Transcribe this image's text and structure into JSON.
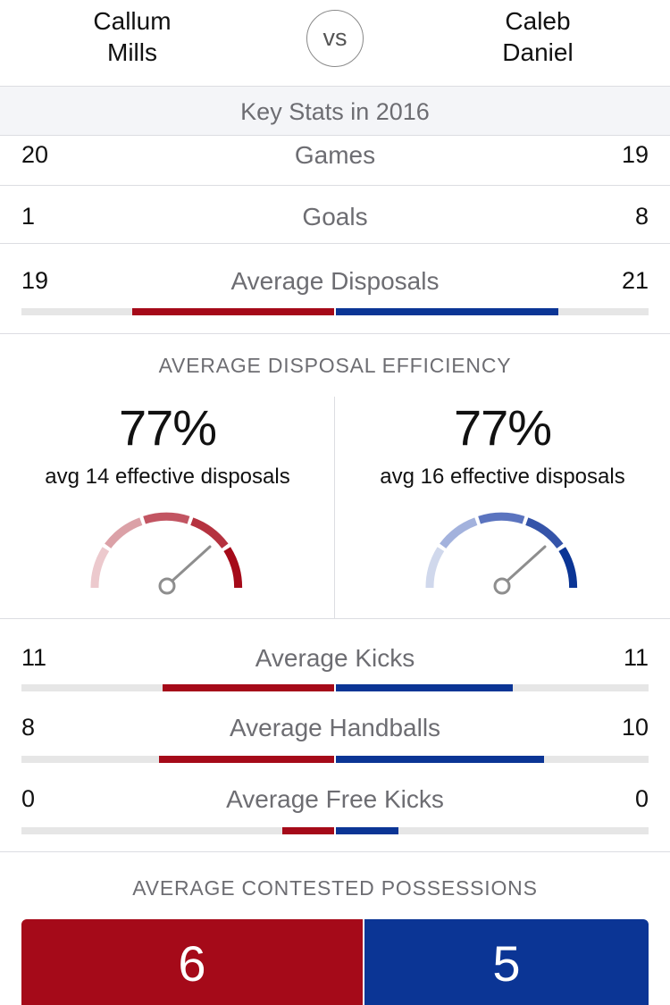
{
  "header": {
    "player_left": "Callum\nMills",
    "player_left_first": "Callum",
    "player_left_last": "Mills",
    "vs_label": "VS",
    "player_right_first": "Caleb",
    "player_right_last": "Daniel"
  },
  "section_title": "Key Stats in 2016",
  "colors": {
    "left_team": "#a50a19",
    "right_team": "#0b3595",
    "track": "#e6e6e6"
  },
  "stats": {
    "games": {
      "label": "Games",
      "left": "20",
      "right": "19"
    },
    "goals": {
      "label": "Goals",
      "left": "1",
      "right": "8"
    },
    "average_disposals": {
      "label": "Average Disposals",
      "left": "19",
      "right": "21",
      "left_fill_fraction": 0.646,
      "right_fill_fraction": 0.711
    },
    "average_kicks": {
      "label": "Average Kicks",
      "left": "11",
      "right": "11",
      "left_fill_fraction": 0.549,
      "right_fill_fraction": 0.566
    },
    "average_handballs": {
      "label": "Average Handballs",
      "left": "8",
      "right": "10",
      "left_fill_fraction": 0.56,
      "right_fill_fraction": 0.666
    },
    "average_free_kicks": {
      "label": "Average Free Kicks",
      "left": "0",
      "right": "0",
      "left_fill_fraction": 0.166,
      "right_fill_fraction": 0.2
    }
  },
  "efficiency": {
    "title": "AVERAGE DISPOSAL EFFICIENCY",
    "left": {
      "percent": "77%",
      "subtitle": "avg 14 effective disposals",
      "gauge_value": 0.77
    },
    "right": {
      "percent": "77%",
      "subtitle": "avg 16 effective disposals",
      "gauge_value": 0.77
    }
  },
  "contested": {
    "title": "AVERAGE CONTESTED POSSESSIONS",
    "left": "6",
    "right": "5"
  }
}
